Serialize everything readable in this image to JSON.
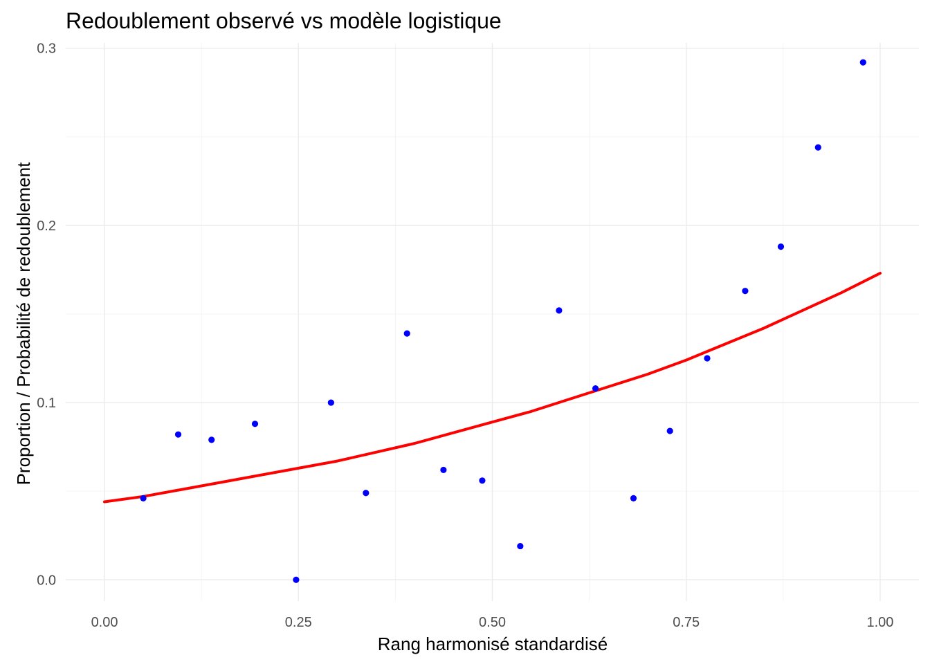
{
  "chart_data": {
    "type": "scatter",
    "title": "Redoublement observé vs modèle logistique",
    "xlabel": "Rang harmonisé standardisé",
    "ylabel": "Proportion / Probabilité de redoublement",
    "xlim": [
      -0.05,
      1.05
    ],
    "ylim": [
      -0.012,
      0.303
    ],
    "x_ticks": [
      0.0,
      0.25,
      0.5,
      0.75,
      1.0
    ],
    "x_tick_labels": [
      "0.00",
      "0.25",
      "0.50",
      "0.75",
      "1.00"
    ],
    "y_ticks": [
      0.0,
      0.1,
      0.2,
      0.3
    ],
    "y_tick_labels": [
      "0.0",
      "0.1",
      "0.2",
      "0.3"
    ],
    "grid": true,
    "legend": "none",
    "series": [
      {
        "kind": "points",
        "color": "#0000ff",
        "points": [
          {
            "x": 0.05,
            "y": 0.046
          },
          {
            "x": 0.095,
            "y": 0.082
          },
          {
            "x": 0.138,
            "y": 0.079
          },
          {
            "x": 0.194,
            "y": 0.088
          },
          {
            "x": 0.247,
            "y": 0.0
          },
          {
            "x": 0.292,
            "y": 0.1
          },
          {
            "x": 0.337,
            "y": 0.049
          },
          {
            "x": 0.39,
            "y": 0.139
          },
          {
            "x": 0.437,
            "y": 0.062
          },
          {
            "x": 0.487,
            "y": 0.056
          },
          {
            "x": 0.536,
            "y": 0.019
          },
          {
            "x": 0.586,
            "y": 0.152
          },
          {
            "x": 0.633,
            "y": 0.108
          },
          {
            "x": 0.682,
            "y": 0.046
          },
          {
            "x": 0.729,
            "y": 0.084
          },
          {
            "x": 0.777,
            "y": 0.125
          },
          {
            "x": 0.826,
            "y": 0.163
          },
          {
            "x": 0.872,
            "y": 0.188
          },
          {
            "x": 0.92,
            "y": 0.244
          },
          {
            "x": 0.978,
            "y": 0.292
          }
        ]
      },
      {
        "kind": "line",
        "color": "#ff0000",
        "points": [
          {
            "x": 0.0,
            "y": 0.044
          },
          {
            "x": 0.05,
            "y": 0.047
          },
          {
            "x": 0.1,
            "y": 0.051
          },
          {
            "x": 0.15,
            "y": 0.055
          },
          {
            "x": 0.2,
            "y": 0.059
          },
          {
            "x": 0.25,
            "y": 0.063
          },
          {
            "x": 0.3,
            "y": 0.067
          },
          {
            "x": 0.35,
            "y": 0.072
          },
          {
            "x": 0.4,
            "y": 0.077
          },
          {
            "x": 0.45,
            "y": 0.083
          },
          {
            "x": 0.5,
            "y": 0.089
          },
          {
            "x": 0.55,
            "y": 0.095
          },
          {
            "x": 0.6,
            "y": 0.102
          },
          {
            "x": 0.65,
            "y": 0.109
          },
          {
            "x": 0.7,
            "y": 0.116
          },
          {
            "x": 0.75,
            "y": 0.124
          },
          {
            "x": 0.8,
            "y": 0.133
          },
          {
            "x": 0.85,
            "y": 0.142
          },
          {
            "x": 0.9,
            "y": 0.152
          },
          {
            "x": 0.95,
            "y": 0.162
          },
          {
            "x": 1.0,
            "y": 0.173
          }
        ]
      }
    ]
  }
}
